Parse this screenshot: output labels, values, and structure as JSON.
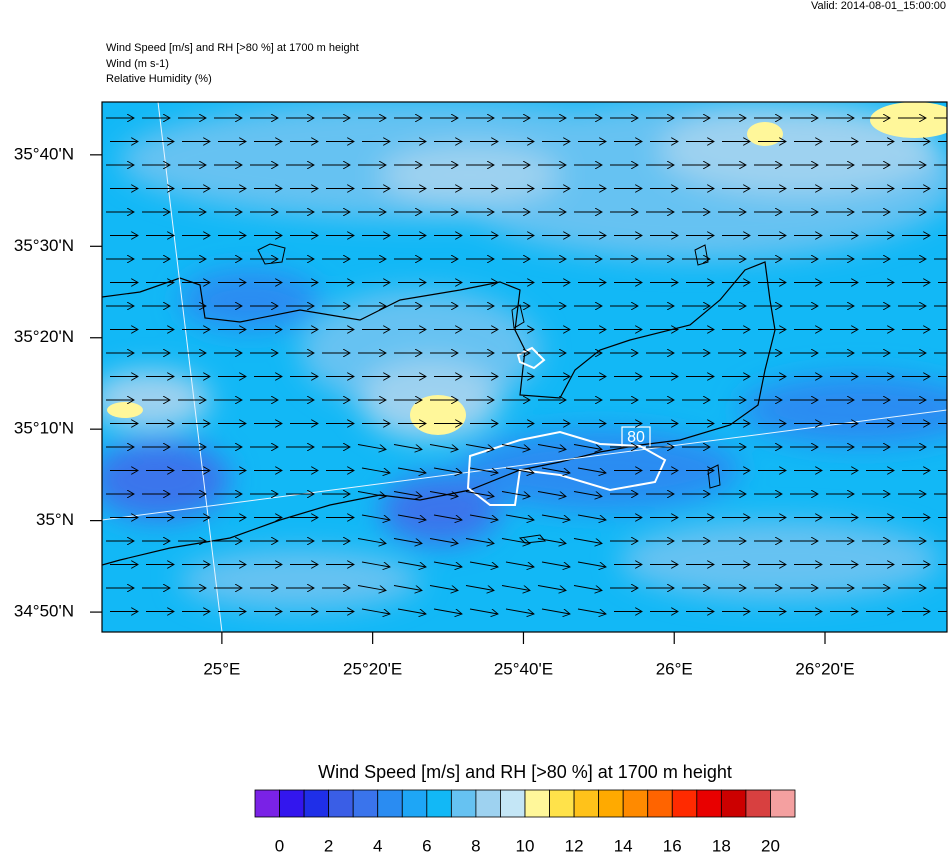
{
  "header": {
    "valid": "Valid: 2014-08-01_15:00:00",
    "lines": [
      "Wind Speed [m/s] and RH [>80 %] at 1700 m height",
      "Wind   (m s-1)",
      "Relative Humidity   (%)"
    ]
  },
  "map": {
    "xlim": [
      24.735,
      26.603
    ],
    "ylim": [
      34.797,
      35.763
    ],
    "lat_ticks": [
      {
        "value": 35.6667,
        "label": "35°40'N"
      },
      {
        "value": 35.5,
        "label": "35°30'N"
      },
      {
        "value": 35.3333,
        "label": "35°20'N"
      },
      {
        "value": 35.1667,
        "label": "35°10'N"
      },
      {
        "value": 35.0,
        "label": "35°N"
      },
      {
        "value": 34.8333,
        "label": "34°50'N"
      }
    ],
    "lon_ticks": [
      {
        "value": 25.0,
        "label": "25°E"
      },
      {
        "value": 25.3333,
        "label": "25°20'E"
      },
      {
        "value": 25.6667,
        "label": "25°40'E"
      },
      {
        "value": 26.0,
        "label": "26°E"
      },
      {
        "value": 26.3333,
        "label": "26°20'E"
      }
    ],
    "contour_label": "80"
  },
  "colorbar": {
    "title": "Wind Speed [m/s] and RH [>80 %] at 1700 m height",
    "range": [
      -1,
      21
    ],
    "ticks": [
      0,
      2,
      4,
      6,
      8,
      10,
      12,
      14,
      16,
      18,
      20
    ],
    "colors": [
      "#7a22e6",
      "#3316ee",
      "#1f2fe8",
      "#3a5ee6",
      "#3a74ec",
      "#2a8cf2",
      "#1ea6f6",
      "#12b8f6",
      "#66c2f2",
      "#9ed2f0",
      "#c4e6f6",
      "#fff79a",
      "#ffe24a",
      "#ffc21a",
      "#ffaa00",
      "#ff8a00",
      "#ff6400",
      "#ff2a00",
      "#e80000",
      "#cc0000",
      "#d84040",
      "#f4a0a0"
    ]
  }
}
